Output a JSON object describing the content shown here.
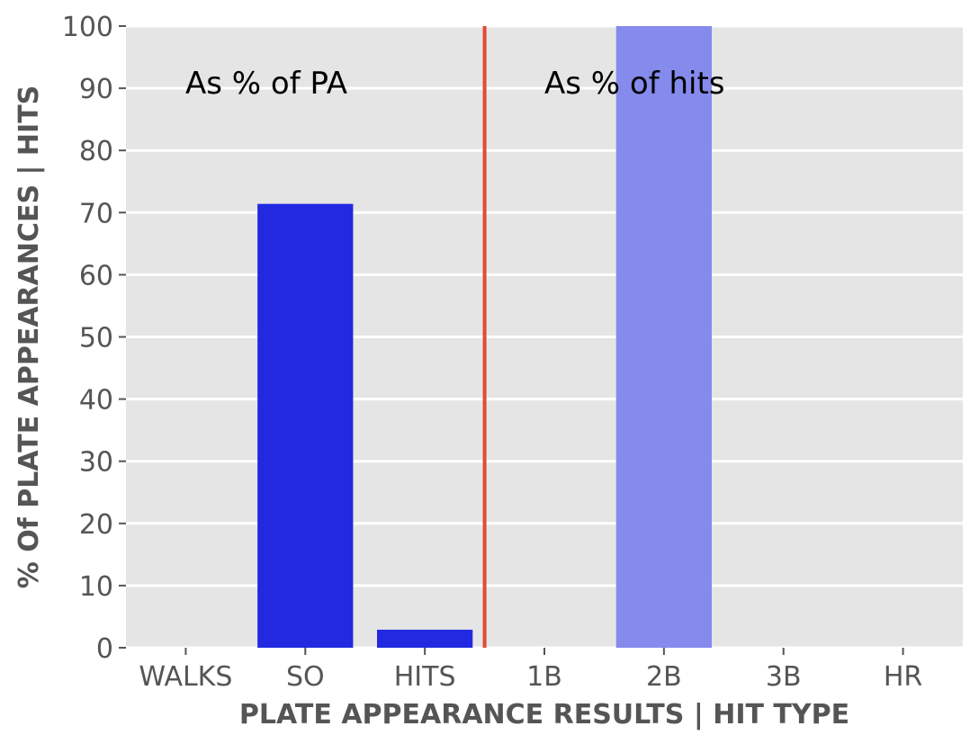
{
  "chart_data": {
    "type": "bar",
    "categories": [
      "WALKS",
      "SO",
      "HITS",
      "1B",
      "2B",
      "3B",
      "HR"
    ],
    "values": [
      0,
      71.4,
      2.9,
      0,
      100,
      0,
      0
    ],
    "xlabel": "PLATE APPEARANCE RESULTS | HIT TYPE",
    "ylabel": "% Of PLATE APPEARANCES | HITS",
    "ylim": [
      0,
      100
    ],
    "yticks": [
      0,
      10,
      20,
      30,
      40,
      50,
      60,
      70,
      80,
      90,
      100
    ],
    "grid": true,
    "divider_after_category": "HITS",
    "annotations": {
      "left": "As % of PA",
      "right": "As % of hits"
    },
    "colors": {
      "pa_bars": "#2229e0",
      "hit_bars": "#858aed",
      "divider": "#e24a33",
      "plot_background": "#e5e5e5",
      "grid": "#ffffff"
    }
  }
}
